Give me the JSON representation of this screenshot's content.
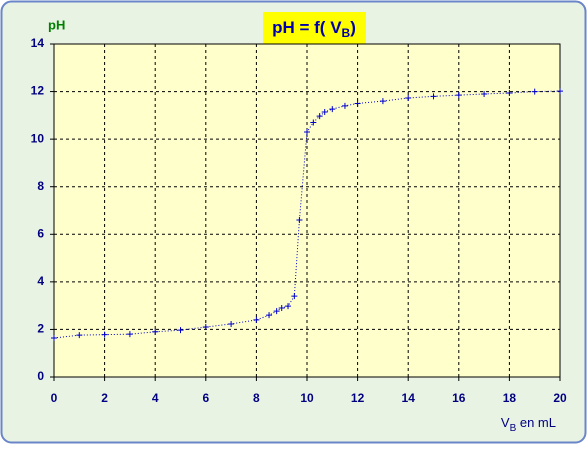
{
  "chart_data": {
    "type": "line",
    "title": [
      "pH = f( V",
      "B",
      ")"
    ],
    "ylabel": "pH",
    "xlabel": [
      "V",
      "B",
      " en mL"
    ],
    "xlim": [
      0,
      20
    ],
    "xticks": [
      0,
      2,
      4,
      6,
      8,
      10,
      12,
      14,
      16,
      18,
      20
    ],
    "ylim": [
      0,
      14
    ],
    "yticks": [
      0,
      2,
      4,
      6,
      8,
      10,
      12,
      14
    ],
    "grid": true,
    "series": [
      {
        "color": "#0000cc",
        "x": [
          0,
          1,
          2,
          3,
          4,
          5,
          6,
          7,
          8,
          8.5,
          8.8,
          9,
          9.25,
          9.5,
          9.7,
          10,
          10.25,
          10.5,
          10.7,
          11,
          11.5,
          12,
          13,
          14,
          15,
          16,
          17,
          18,
          19,
          20
        ],
        "values": [
          1.64,
          1.76,
          1.78,
          1.8,
          1.9,
          1.97,
          2.1,
          2.23,
          2.4,
          2.6,
          2.77,
          2.9,
          2.98,
          3.4,
          6.6,
          10.3,
          10.7,
          10.97,
          11.14,
          11.26,
          11.4,
          11.5,
          11.6,
          11.73,
          11.8,
          11.85,
          11.9,
          11.94,
          12.0,
          12.02
        ]
      }
    ]
  }
}
